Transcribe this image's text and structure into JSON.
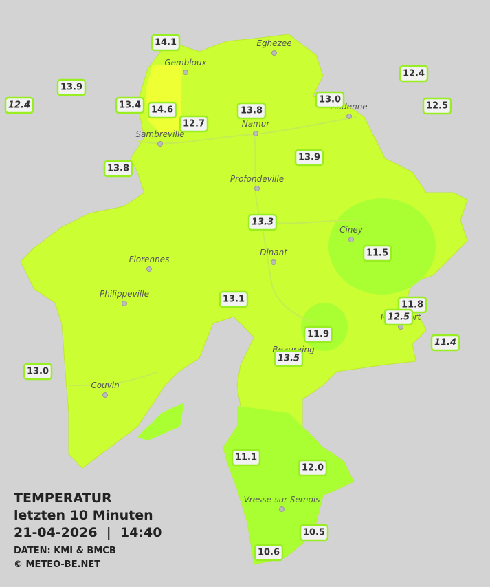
{
  "legend": {
    "title": "TEMPERATUR",
    "period": "letzten 10 Minuten",
    "timestamp": "21-04-2026  |  14:40",
    "source": "DATEN: KMI & BMCB",
    "copyright": "© METEO-BE.NET"
  },
  "towns": [
    "Eghezee",
    "Gembloux",
    "Andenne",
    "Namur",
    "Sambreville",
    "Profondeville",
    "Ciney",
    "Dinant",
    "Florennes",
    "Philippeville",
    "Rochefort",
    "Beauraing",
    "Couvin",
    "Vresse-sur-Semois"
  ],
  "stations": [
    {
      "label": "14.1"
    },
    {
      "label": "13.9"
    },
    {
      "label": "12.4",
      "italic": true
    },
    {
      "label": "13.4"
    },
    {
      "label": "14.6"
    },
    {
      "label": "12.7"
    },
    {
      "label": "13.8"
    },
    {
      "label": "13.0"
    },
    {
      "label": "12.4"
    },
    {
      "label": "12.5"
    },
    {
      "label": "13.8"
    },
    {
      "label": "13.9"
    },
    {
      "label": "13.3",
      "italic": true
    },
    {
      "label": "11.5"
    },
    {
      "label": "13.1"
    },
    {
      "label": "11.8"
    },
    {
      "label": "12.5",
      "italic": true
    },
    {
      "label": "11.9"
    },
    {
      "label": "11.4",
      "italic": true
    },
    {
      "label": "13.5",
      "italic": true
    },
    {
      "label": "13.0"
    },
    {
      "label": "11.1"
    },
    {
      "label": "12.0"
    },
    {
      "label": "10.5"
    },
    {
      "label": "10.6"
    }
  ]
}
